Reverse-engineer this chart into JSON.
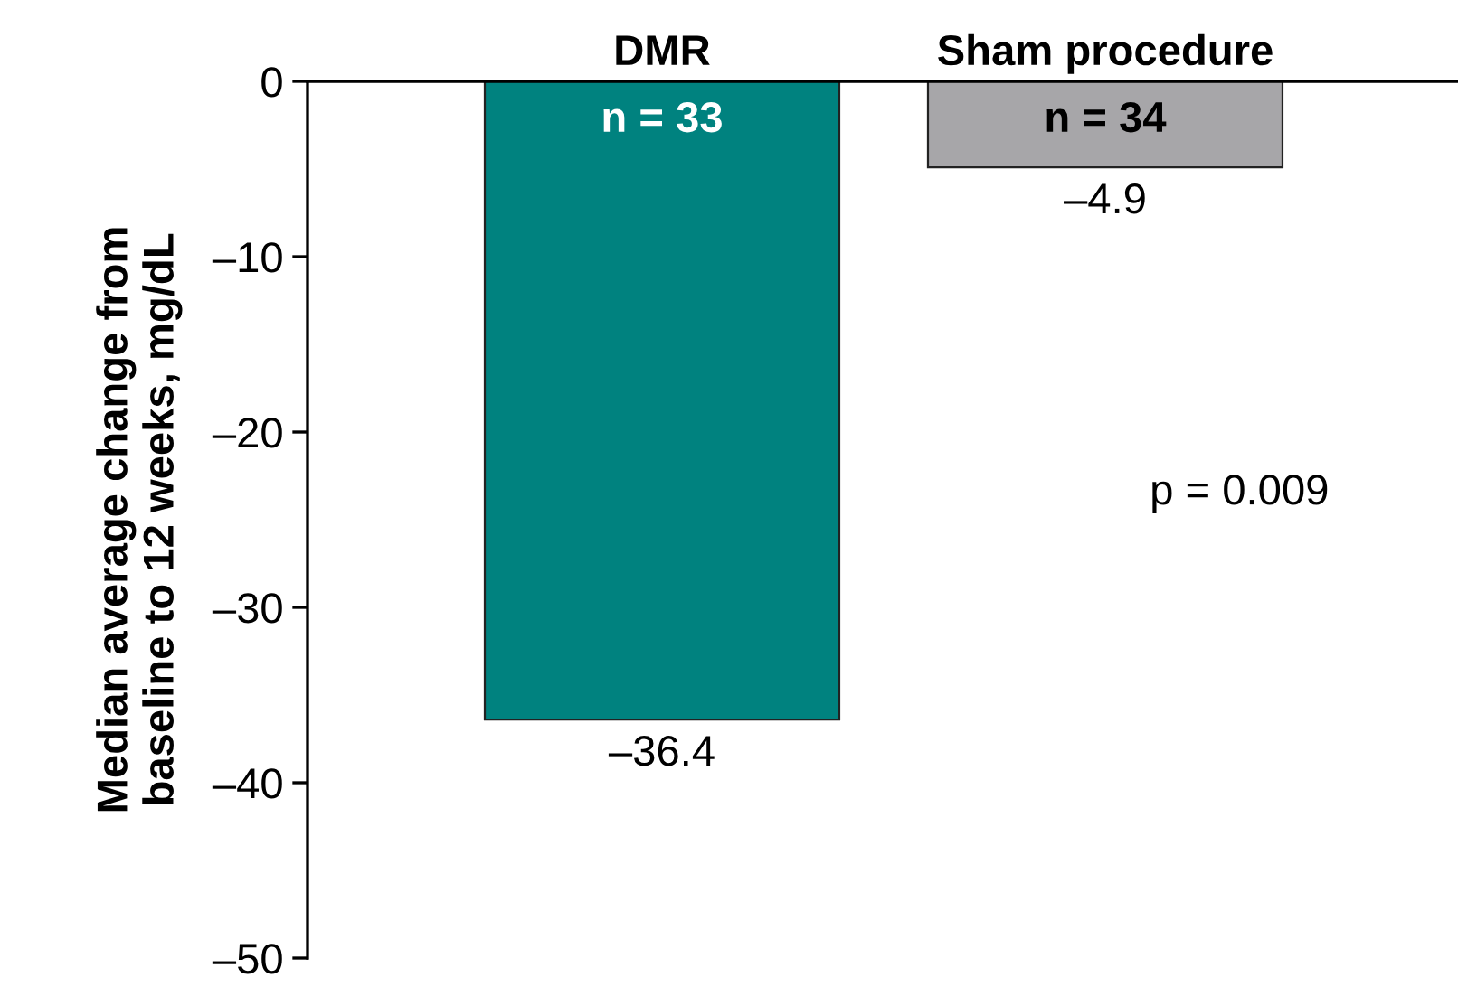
{
  "chart_data": {
    "type": "bar",
    "ylabel": "Median average change from\nbaseline to 12 weeks, mg/dL",
    "categories": [
      "DMR",
      "Sham procedure"
    ],
    "values": [
      -36.4,
      -4.9
    ],
    "colors": [
      "#00827f",
      "#a7a6a9"
    ],
    "value_labels": [
      "–36.4",
      "–4.9"
    ],
    "ylim": [
      -50,
      0
    ],
    "yticks": [
      {
        "value": 0,
        "label": "0"
      },
      {
        "value": -10,
        "label": "–10"
      },
      {
        "value": -20,
        "label": "–20"
      },
      {
        "value": -30,
        "label": "–30"
      },
      {
        "value": -40,
        "label": "–40"
      },
      {
        "value": -50,
        "label": "–50"
      }
    ],
    "annotations": [
      "n = 33",
      "n = 34",
      "p = 0.009"
    ],
    "grid": false,
    "legend": false
  }
}
